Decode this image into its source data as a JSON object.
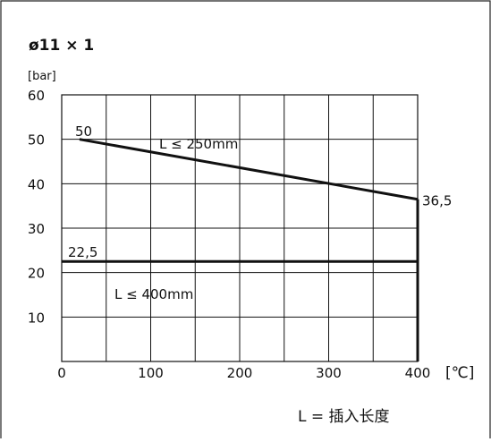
{
  "chart_data": {
    "type": "line",
    "title": "ø11 × 1",
    "xlabel": "",
    "ylabel": "",
    "x_unit": "[℃]",
    "y_unit": "[bar]",
    "xlim": [
      0,
      400
    ],
    "ylim": [
      0,
      60
    ],
    "x_ticks": [
      0,
      100,
      200,
      300,
      400
    ],
    "y_ticks": [
      10,
      20,
      30,
      40,
      50,
      60
    ],
    "grid": true,
    "series": [
      {
        "name": "L ≤ 250mm",
        "x": [
          20,
          400
        ],
        "y": [
          50,
          36.5
        ]
      },
      {
        "name": "L ≤ 400mm",
        "x": [
          0,
          400
        ],
        "y": [
          22.5,
          22.5
        ]
      }
    ],
    "annotations": [
      {
        "text": "50",
        "x": 20,
        "y": 50
      },
      {
        "text": "36,5",
        "x": 400,
        "y": 36.5
      },
      {
        "text": "22,5",
        "x": 0,
        "y": 22.5
      }
    ],
    "footnote": "L = 插入长度"
  }
}
